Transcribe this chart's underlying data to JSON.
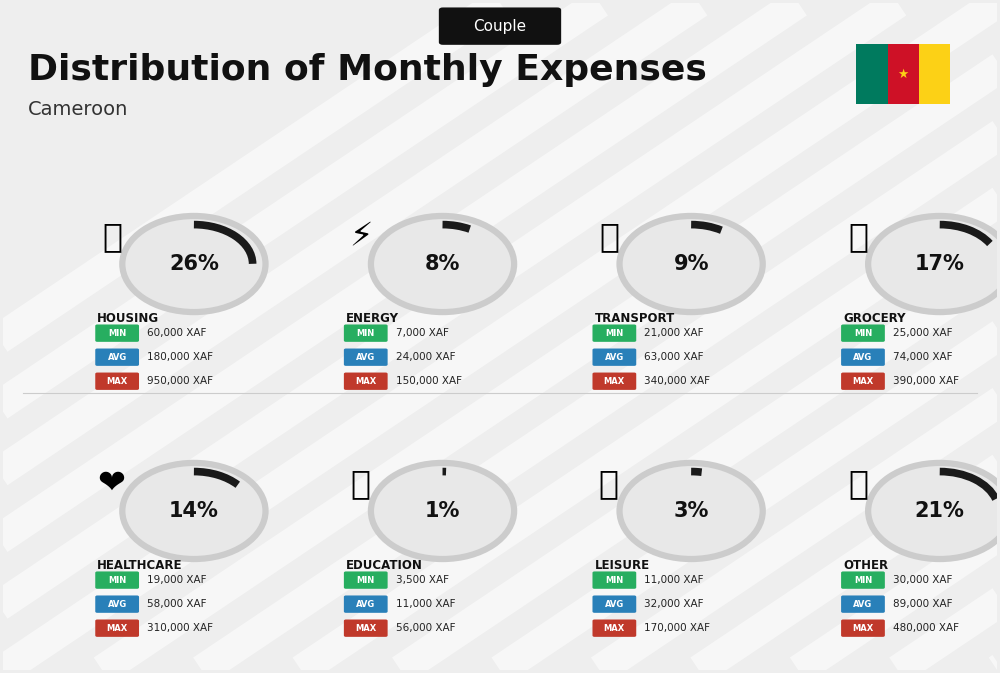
{
  "title": "Distribution of Monthly Expenses",
  "subtitle": "Cameroon",
  "badge": "Couple",
  "bg_color": "#eeeeee",
  "categories": [
    {
      "name": "HOUSING",
      "pct": 26,
      "min": "60,000 XAF",
      "avg": "180,000 XAF",
      "max": "950,000 XAF",
      "col": 0,
      "row": 0
    },
    {
      "name": "ENERGY",
      "pct": 8,
      "min": "7,000 XAF",
      "avg": "24,000 XAF",
      "max": "150,000 XAF",
      "col": 1,
      "row": 0
    },
    {
      "name": "TRANSPORT",
      "pct": 9,
      "min": "21,000 XAF",
      "avg": "63,000 XAF",
      "max": "340,000 XAF",
      "col": 2,
      "row": 0
    },
    {
      "name": "GROCERY",
      "pct": 17,
      "min": "25,000 XAF",
      "avg": "74,000 XAF",
      "max": "390,000 XAF",
      "col": 3,
      "row": 0
    },
    {
      "name": "HEALTHCARE",
      "pct": 14,
      "min": "19,000 XAF",
      "avg": "58,000 XAF",
      "max": "310,000 XAF",
      "col": 0,
      "row": 1
    },
    {
      "name": "EDUCATION",
      "pct": 1,
      "min": "3,500 XAF",
      "avg": "11,000 XAF",
      "max": "56,000 XAF",
      "col": 1,
      "row": 1
    },
    {
      "name": "LEISURE",
      "pct": 3,
      "min": "11,000 XAF",
      "avg": "32,000 XAF",
      "max": "170,000 XAF",
      "col": 2,
      "row": 1
    },
    {
      "name": "OTHER",
      "pct": 21,
      "min": "30,000 XAF",
      "avg": "89,000 XAF",
      "max": "480,000 XAF",
      "col": 3,
      "row": 1
    }
  ],
  "min_color": "#27ae60",
  "avg_color": "#2980b9",
  "max_color": "#c0392b",
  "circle_edge_color": "#cccccc",
  "circle_fill": "#e8e8e8",
  "arc_color": "#1a1a1a",
  "pct_fontsize": 15,
  "cat_fontsize": 8.5,
  "val_fontsize": 7.5,
  "title_fontsize": 26,
  "subtitle_fontsize": 14,
  "badge_fontsize": 11,
  "cameroon_flag_colors": [
    "#007a5e",
    "#ce1126",
    "#fcd116"
  ]
}
